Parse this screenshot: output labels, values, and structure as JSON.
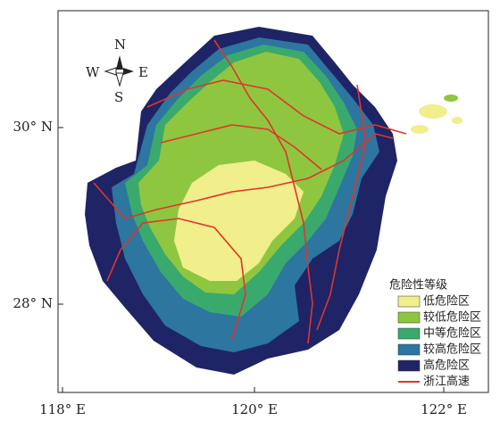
{
  "map": {
    "x_axis_labels": [
      "118° E",
      "120° E",
      "122° E"
    ],
    "y_axis_labels": [
      "30° N",
      "28° N"
    ],
    "compass": {
      "north": "N",
      "south": "S",
      "west": "W",
      "east": "E"
    },
    "legend": {
      "title": "危险性等级",
      "items": [
        {
          "label": "低危险区",
          "color": "#f1ee8c"
        },
        {
          "label": "较低危险区",
          "color": "#8fc640"
        },
        {
          "label": "中等危险区",
          "color": "#3aa96e"
        },
        {
          "label": "较高危险区",
          "color": "#2c76a0"
        },
        {
          "label": "高危险区",
          "color": "#1f2466"
        },
        {
          "label": "浙江高速",
          "color": "#e0352b"
        }
      ]
    }
  }
}
